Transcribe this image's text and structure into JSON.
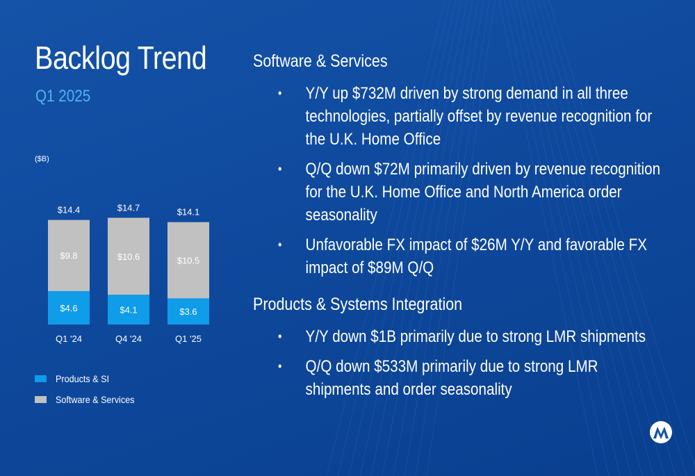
{
  "slide": {
    "title": "Backlog Trend",
    "subtitle": "Q1 2025"
  },
  "chart_data": {
    "type": "bar",
    "stacked": true,
    "unit_label": "($B)",
    "categories": [
      "Q1 '24",
      "Q4 '24",
      "Q1 '25"
    ],
    "series": [
      {
        "name": "Products & SI",
        "values": [
          4.6,
          4.1,
          3.6
        ],
        "labels": [
          "$4.6",
          "$4.1",
          "$3.6"
        ],
        "color": "#0f9ce8"
      },
      {
        "name": "Software & Services",
        "values": [
          9.8,
          10.6,
          10.5
        ],
        "labels": [
          "$9.8",
          "$10.6",
          "$10.5"
        ],
        "color": "#c1c1c1"
      }
    ],
    "totals": [
      14.4,
      14.7,
      14.1
    ],
    "total_labels": [
      "$14.4",
      "$14.7",
      "$14.1"
    ],
    "legend_position": "bottom-left",
    "grid": false
  },
  "sections": [
    {
      "heading": "Software & Services",
      "bullets": [
        "Y/Y up $732M driven by strong demand in all three technologies, partially offset by revenue recognition for the U.K. Home Office",
        "Q/Q down $72M primarily driven by revenue recognition for the U.K. Home Office and North America order seasonality",
        "Unfavorable FX impact of $26M Y/Y and favorable FX impact of $89M Q/Q"
      ]
    },
    {
      "heading": "Products & Systems Integration",
      "bullets": [
        "Y/Y down $1B primarily due to strong LMR shipments",
        "Q/Q down $533M primarily due to strong LMR shipments and order seasonality"
      ]
    }
  ],
  "logo": {
    "icon": "motorola-logo",
    "bg": "#ffffff",
    "fg": "#1553a8"
  }
}
